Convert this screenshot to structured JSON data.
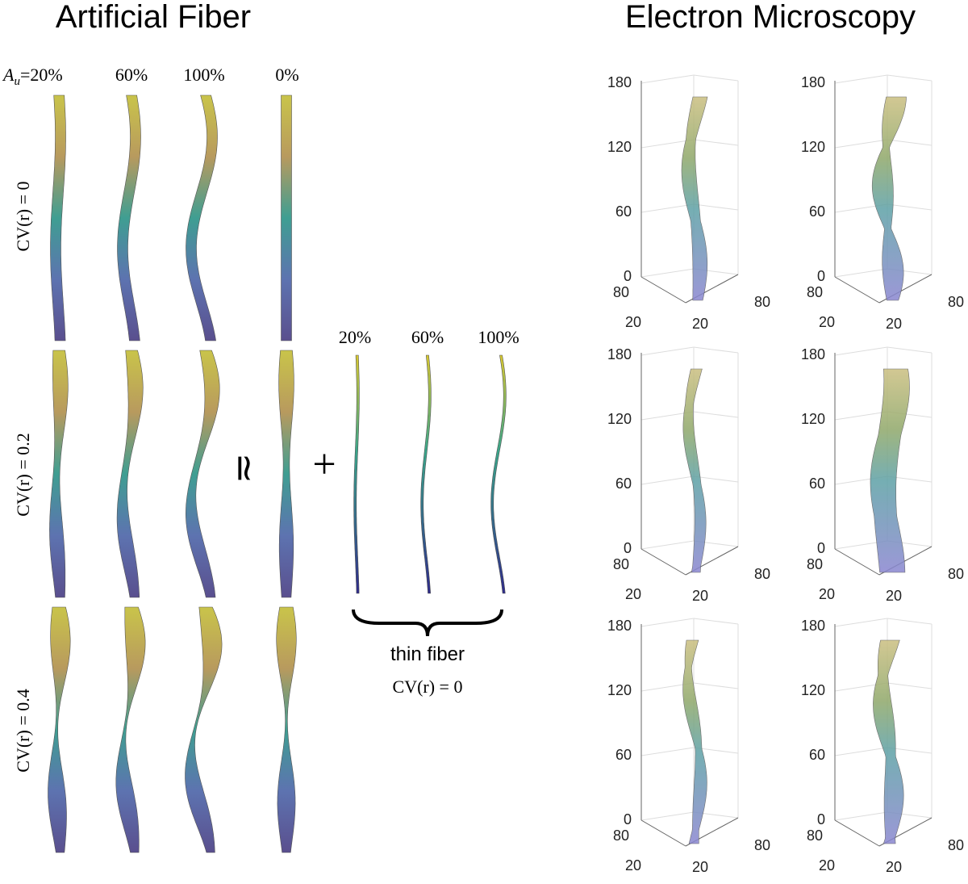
{
  "artificial": {
    "title": "Artificial Fiber",
    "amplitude_symbol": "A",
    "amplitude_subscript": "u",
    "column_labels": [
      "=20%",
      "60%",
      "100%",
      "0%"
    ],
    "row_labels": [
      "CV(r) = 0",
      "CV(r) = 0.2",
      "CV(r) = 0.4"
    ],
    "approx_symbol": "≃",
    "plus_symbol": "+"
  },
  "thin_fiber": {
    "labels": [
      "20%",
      "60%",
      "100%"
    ],
    "caption": "thin fiber",
    "cv_label": "CV(r) = 0"
  },
  "electron_microscopy": {
    "title": "Electron Microscopy",
    "panels": [
      {
        "z_ticks": [
          "180",
          "120",
          "60",
          "0"
        ],
        "x_ticks": [
          "80",
          "20"
        ],
        "y_ticks": [
          "20",
          "80"
        ]
      },
      {
        "z_ticks": [
          "180",
          "120",
          "60",
          "0"
        ],
        "x_ticks": [
          "80",
          "20"
        ],
        "y_ticks": [
          "20",
          "80"
        ]
      },
      {
        "z_ticks": [
          "180",
          "120",
          "60",
          "0"
        ],
        "x_ticks": [
          "80",
          "20"
        ],
        "y_ticks": [
          "20",
          "80"
        ]
      },
      {
        "z_ticks": [
          "180",
          "120",
          "60",
          "0"
        ],
        "x_ticks": [
          "80",
          "20"
        ],
        "y_ticks": [
          "20",
          "80"
        ]
      },
      {
        "z_ticks": [
          "180",
          "120",
          "60",
          "0"
        ],
        "x_ticks": [
          "80",
          "20"
        ],
        "y_ticks": [
          "20",
          "80"
        ]
      },
      {
        "z_ticks": [
          "180",
          "120",
          "60",
          "0"
        ],
        "x_ticks": [
          "80",
          "20"
        ],
        "y_ticks": [
          "20",
          "80"
        ]
      }
    ]
  }
}
